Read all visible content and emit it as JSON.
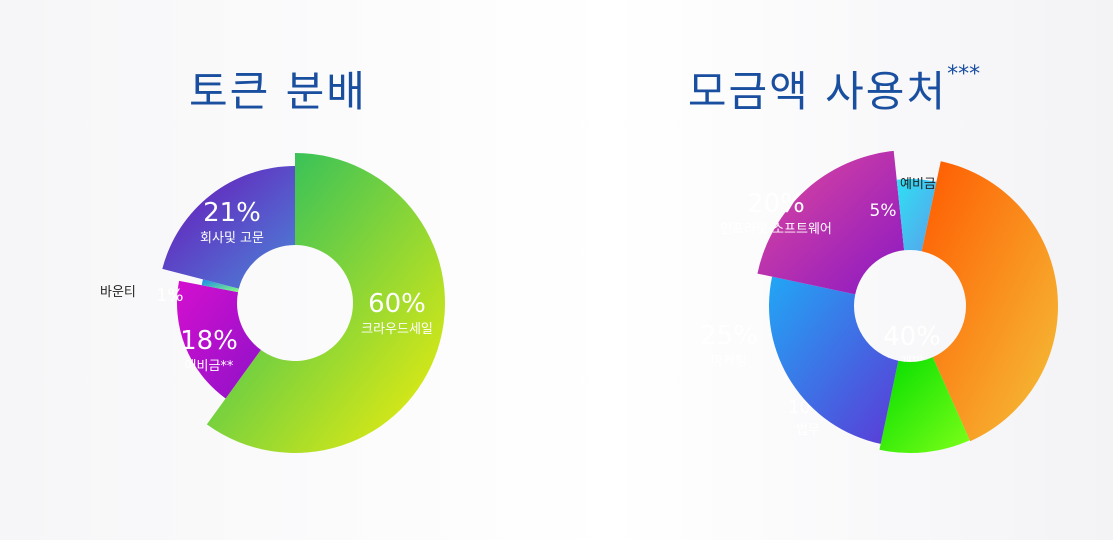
{
  "chart_data": [
    {
      "type": "pie",
      "title": "토큰 분배",
      "slices": [
        {
          "name": "크라우드세일",
          "value": 60,
          "pct_label": "60%",
          "gradient": [
            "#0fb86a",
            "#f5ef0a"
          ]
        },
        {
          "name": "예비금**",
          "value": 18,
          "pct_label": "18%",
          "gradient": [
            "#d40fcf",
            "#8e12c8"
          ]
        },
        {
          "name": "바운티",
          "value": 1,
          "pct_label": "1%",
          "gradient": [
            "#1a86f0",
            "#86ff7c"
          ]
        },
        {
          "name": "회사및 고문",
          "value": 21,
          "pct_label": "21%",
          "gradient": [
            "#6a13b8",
            "#4a86d8"
          ]
        }
      ]
    },
    {
      "type": "pie",
      "title": "모금액 사용처",
      "title_suffix": "***",
      "slices": [
        {
          "name": "개발",
          "value": 40,
          "pct_label": "40%",
          "gradient": [
            "#ff5a00",
            "#f4c23a"
          ]
        },
        {
          "name": "법무",
          "value": 10,
          "pct_label": "10%",
          "gradient": [
            "#00dd00",
            "#7eff18"
          ]
        },
        {
          "name": "마케팅",
          "value": 25,
          "pct_label": "25%",
          "gradient": [
            "#22a6f5",
            "#5b3ad6"
          ]
        },
        {
          "name": "인프라및 소프트웨어",
          "value": 20,
          "pct_label": "20%",
          "gradient": [
            "#e0489c",
            "#8a18c4"
          ]
        },
        {
          "name": "예비금",
          "value": 5,
          "pct_label": "5%",
          "gradient": [
            "#2ee0f5",
            "#5aa0ea"
          ]
        }
      ]
    }
  ]
}
